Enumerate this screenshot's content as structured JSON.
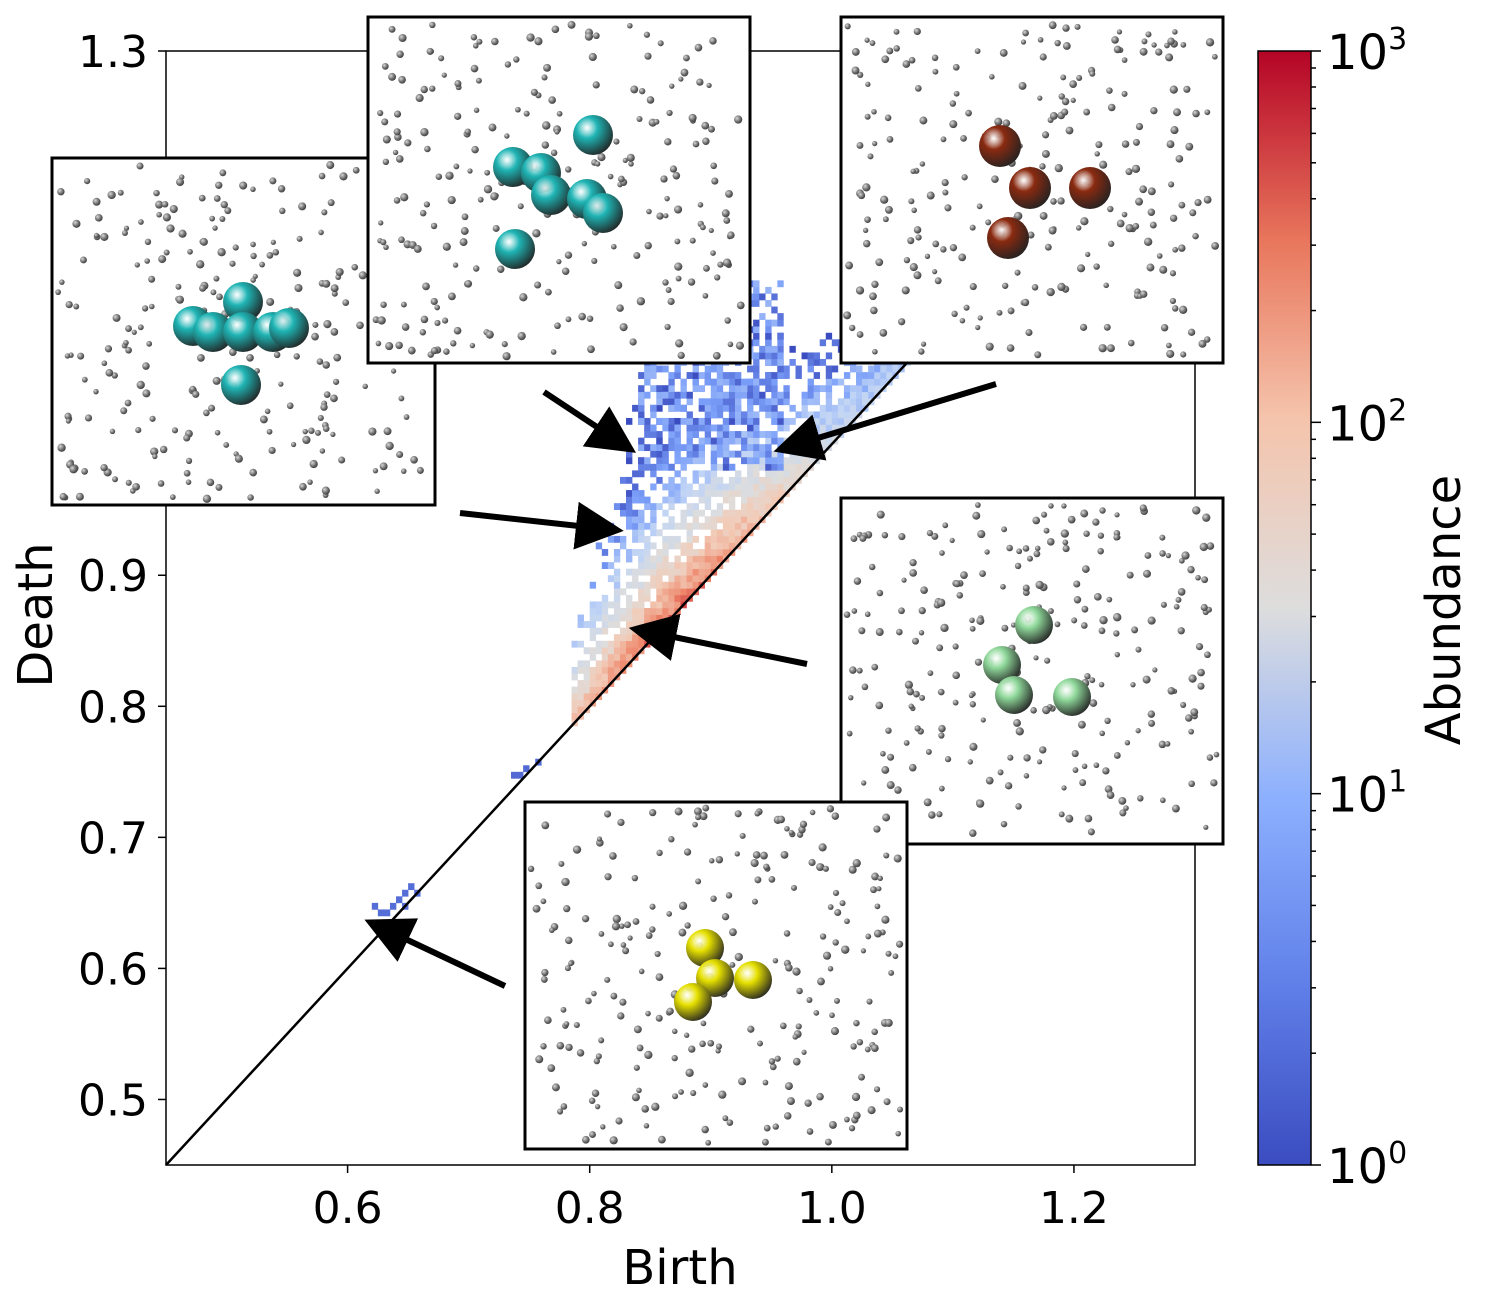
{
  "chart_data": {
    "type": "heatmap",
    "title": "",
    "xlabel": "Birth",
    "ylabel": "Death",
    "xlim": [
      0.45,
      1.3
    ],
    "ylim": [
      0.45,
      1.3
    ],
    "xticks": [
      0.6,
      0.8,
      1.0,
      1.2
    ],
    "xtick_labels": [
      "0.6",
      "0.8",
      "1.0",
      "1.2"
    ],
    "yticks": [
      0.5,
      0.6,
      0.7,
      0.8,
      0.9,
      1.3
    ],
    "ytick_labels": [
      "0.5",
      "0.6",
      "0.7",
      "0.8",
      "0.9",
      "1.3"
    ],
    "diagonal": "y = x",
    "colorbar": {
      "label": "Abundance",
      "scale": "log",
      "range": [
        1,
        1000
      ],
      "ticks": [
        {
          "base": "10",
          "exp": "0",
          "value": 1
        },
        {
          "base": "10",
          "exp": "1",
          "value": 10
        },
        {
          "base": "10",
          "exp": "2",
          "value": 100
        },
        {
          "base": "10",
          "exp": "3",
          "value": 1000
        }
      ],
      "colors": [
        "#3b4cc0",
        "#7b9ff9",
        "#c0d4f5",
        "#dddddd",
        "#f2cbb7",
        "#ee8468",
        "#b40426"
      ]
    },
    "density_regions": [
      {
        "name": "main-ridge",
        "birth_range": [
          0.83,
          1.06
        ],
        "death_offset_max": 0.03,
        "abundance": [
          20,
          300
        ]
      },
      {
        "name": "main-cloud",
        "birth_range": [
          0.79,
          1.06
        ],
        "death_offset_max": 0.23,
        "abundance": [
          1,
          20
        ]
      },
      {
        "name": "upper-cluster",
        "birth_range": [
          0.84,
          0.95
        ],
        "death_range": [
          1.0,
          1.12
        ],
        "abundance": [
          1,
          5
        ]
      },
      {
        "name": "small-cluster-0.74",
        "birth_range": [
          0.735,
          0.75
        ],
        "death_range": [
          0.74,
          0.76
        ],
        "abundance": [
          1,
          2
        ]
      },
      {
        "name": "small-cluster-0.63",
        "birth_range": [
          0.62,
          0.66
        ],
        "death_range": [
          0.64,
          0.665
        ],
        "abundance": [
          1,
          2
        ]
      }
    ],
    "insets": [
      {
        "name": "cyan-cluster-left",
        "particle_color": "#1fb4b4",
        "particles": 6
      },
      {
        "name": "cyan-cluster-top",
        "particle_color": "#1fb4b4",
        "particles": 7
      },
      {
        "name": "brown-cluster",
        "particle_color": "#8a2a10",
        "particles": 4
      },
      {
        "name": "green-cluster",
        "particle_color": "#8fd89a",
        "particles": 4
      },
      {
        "name": "yellow-cluster",
        "particle_color": "#e6e000",
        "particles": 4
      }
    ]
  }
}
